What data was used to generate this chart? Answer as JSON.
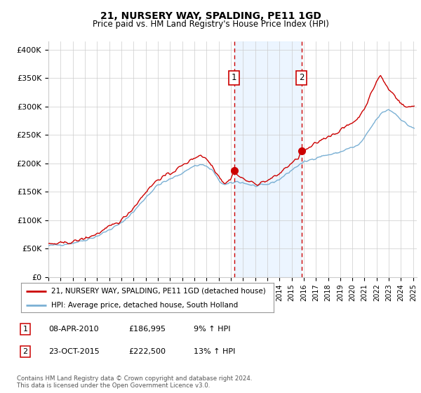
{
  "title": "21, NURSERY WAY, SPALDING, PE11 1GD",
  "subtitle": "Price paid vs. HM Land Registry's House Price Index (HPI)",
  "ylabel_ticks": [
    "£0",
    "£50K",
    "£100K",
    "£150K",
    "£200K",
    "£250K",
    "£300K",
    "£350K",
    "£400K"
  ],
  "ytick_vals": [
    0,
    50000,
    100000,
    150000,
    200000,
    250000,
    300000,
    350000,
    400000
  ],
  "ylim": [
    0,
    415000
  ],
  "xlim_start": 1995.0,
  "xlim_end": 2025.3,
  "sale1_date": 2010.27,
  "sale1_price": 186995,
  "sale2_date": 2015.81,
  "sale2_price": 222500,
  "legend_line1": "21, NURSERY WAY, SPALDING, PE11 1GD (detached house)",
  "legend_line2": "HPI: Average price, detached house, South Holland",
  "footnote": "Contains HM Land Registry data © Crown copyright and database right 2024.\nThis data is licensed under the Open Government Licence v3.0.",
  "line_color_red": "#cc0000",
  "line_color_blue": "#7ab0d4",
  "shade_color": "#ddeeff",
  "grid_color": "#cccccc",
  "dashed_line_color": "#cc0000",
  "title_fontsize": 10,
  "subtitle_fontsize": 8.5
}
